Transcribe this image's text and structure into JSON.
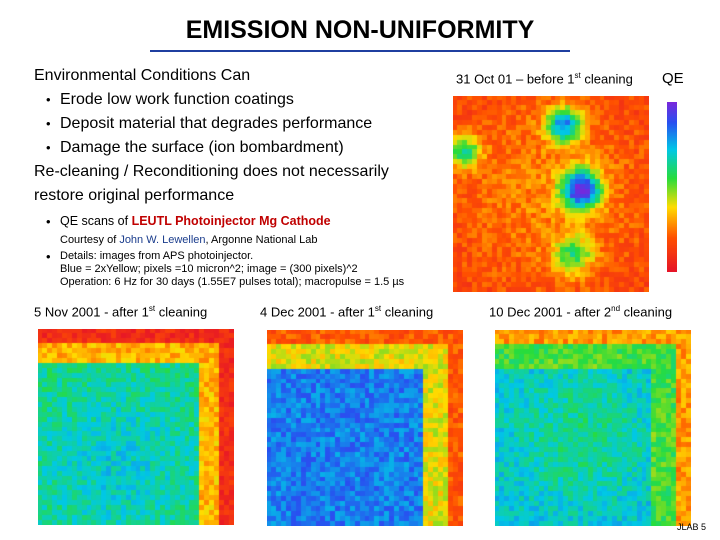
{
  "slide": {
    "title": "EMISSION NON-UNIFORMITY",
    "intro": "Environmental Conditions Can",
    "bullets": [
      "Erode low work function coatings",
      "Deposit material that degrades performance",
      "Damage the surface (ion bombardment)"
    ],
    "recleaning": [
      "Re-cleaning / Reconditioning does not necessarily",
      "restore original performance"
    ],
    "qe_scans_prefix": "QE scans of ",
    "qe_scans_highlight": "LEUTL Photoinjector Mg Cathode",
    "courtesy_prefix": "Courtesy of ",
    "courtesy_name": "John W. Lewellen",
    "courtesy_suffix": ", Argonne National Lab",
    "details": [
      "Details:  images from APS photoinjector.",
      "Blue = 2xYellow; pixels =10 micron^2; image = (300 pixels)^2",
      "Operation:  6 Hz for 30 days (1.55E7 pulses total); macropulse = 1.5 µs"
    ],
    "footer": "JLAB 5"
  },
  "images": {
    "oct": {
      "caption_pre": "31 Oct 01 – before 1",
      "caption_sup": "st",
      "caption_post": " cleaning",
      "qe_label": "QE"
    },
    "nov": {
      "caption_pre": "5 Nov 2001 - after 1",
      "caption_sup": "st",
      "caption_post": " cleaning"
    },
    "dec4": {
      "caption_pre": "4 Dec 2001 - after 1",
      "caption_sup": "st",
      "caption_post": " cleaning"
    },
    "dec10": {
      "caption_pre": "10 Dec 2001 - after 2",
      "caption_sup": "nd",
      "caption_post": " cleaning"
    }
  },
  "colors": {
    "title_rule": "#1f3fa0",
    "highlight": "#c00000",
    "name": "#1a3c8c"
  }
}
